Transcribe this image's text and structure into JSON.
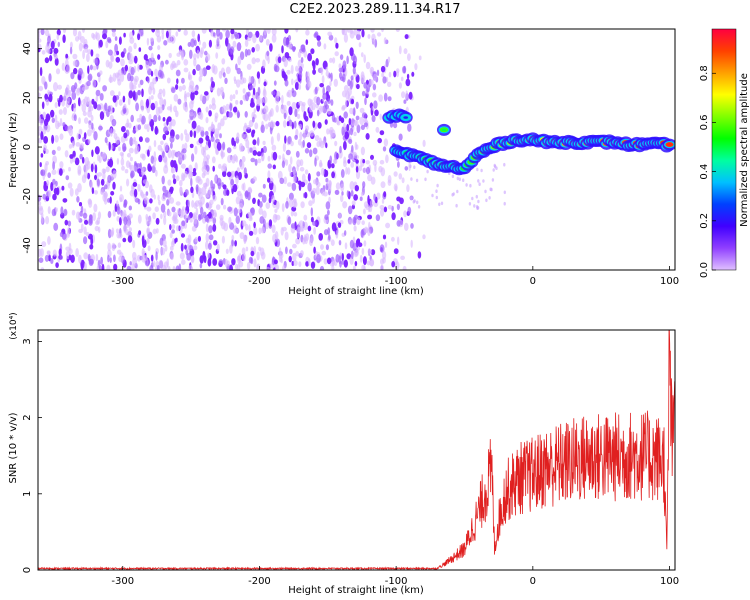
{
  "title": "C2E2.2023.289.11.34.R17",
  "chart_data": [
    {
      "type": "heatmap",
      "xlabel": "Height of straight line (km)",
      "ylabel": "Frequency (Hz)",
      "xlim": [
        -362,
        104
      ],
      "ylim": [
        -50,
        48
      ],
      "x_ticks": [
        -300,
        -200,
        -100,
        0,
        100
      ],
      "y_ticks": [
        -40,
        -20,
        0,
        20,
        40
      ],
      "x_tick_labels": [
        "-300",
        "-200",
        "-100",
        "0",
        "100"
      ],
      "y_tick_labels": [
        "-40",
        "-20",
        "0",
        "20",
        "40"
      ],
      "noise_region_x": [
        -362,
        -85
      ],
      "signal_track": [
        {
          "x": -105,
          "y": 12,
          "amp": 0.25
        },
        {
          "x": -100,
          "y": 13,
          "amp": 0.28
        },
        {
          "x": -93,
          "y": 12,
          "amp": 0.22
        },
        {
          "x": -100,
          "y": -2,
          "amp": 0.3
        },
        {
          "x": -90,
          "y": -3,
          "amp": 0.35
        },
        {
          "x": -80,
          "y": -5,
          "amp": 0.45
        },
        {
          "x": -70,
          "y": -7,
          "amp": 0.5
        },
        {
          "x": -60,
          "y": -8,
          "amp": 0.5
        },
        {
          "x": -50,
          "y": -9,
          "amp": 0.45
        },
        {
          "x": -45,
          "y": -6,
          "amp": 0.5
        },
        {
          "x": -40,
          "y": -3,
          "amp": 0.55
        },
        {
          "x": -30,
          "y": 0,
          "amp": 0.55
        },
        {
          "x": -20,
          "y": 2,
          "amp": 0.6
        },
        {
          "x": -10,
          "y": 3,
          "amp": 0.6
        },
        {
          "x": 0,
          "y": 3,
          "amp": 0.65
        },
        {
          "x": 10,
          "y": 2,
          "amp": 0.7
        },
        {
          "x": 20,
          "y": 2,
          "amp": 0.75
        },
        {
          "x": 30,
          "y": 2,
          "amp": 0.8
        },
        {
          "x": 40,
          "y": 2,
          "amp": 0.8
        },
        {
          "x": 50,
          "y": 2,
          "amp": 0.85
        },
        {
          "x": 60,
          "y": 2,
          "amp": 0.85
        },
        {
          "x": 70,
          "y": 1,
          "amp": 0.9
        },
        {
          "x": 80,
          "y": 1,
          "amp": 0.9
        },
        {
          "x": 90,
          "y": 1,
          "amp": 0.95
        },
        {
          "x": 100,
          "y": 1,
          "amp": 0.95
        }
      ],
      "side_blob": {
        "x": -65,
        "y": 7,
        "amp": 0.5
      }
    },
    {
      "type": "colorbar",
      "label": "Normalized spectral amplitude",
      "range": [
        0,
        0.98
      ],
      "ticks": [
        0,
        0.2,
        0.4,
        0.6,
        0.8
      ],
      "tick_labels": [
        "0.0",
        "0.2",
        "0.4",
        "0.6",
        "0.8"
      ],
      "colormap": [
        "#e0c0ff",
        "#9040ff",
        "#4000ff",
        "#0040ff",
        "#00c0ff",
        "#00ffa0",
        "#00ff00",
        "#80ff00",
        "#ffff00",
        "#ffa000",
        "#ff4000",
        "#ff0040"
      ]
    },
    {
      "type": "line",
      "xlabel": "Height of straight line (km)",
      "ylabel": "SNR (10 * v/v)",
      "y_multiplier": "(x10⁴)",
      "xlim": [
        -362,
        104
      ],
      "ylim": [
        0,
        3.15
      ],
      "x_ticks": [
        -300,
        -200,
        -100,
        0,
        100
      ],
      "y_ticks": [
        0,
        1,
        2,
        3
      ],
      "x_tick_labels": [
        "-300",
        "-200",
        "-100",
        "0",
        "100"
      ],
      "y_tick_labels": [
        "0",
        "1",
        "2",
        "3"
      ],
      "line_color": "#e02020",
      "envelope": [
        {
          "x": -362,
          "y": 0.01
        },
        {
          "x": -70,
          "y": 0.01
        },
        {
          "x": -60,
          "y": 0.15
        },
        {
          "x": -50,
          "y": 0.3
        },
        {
          "x": -40,
          "y": 0.8
        },
        {
          "x": -30,
          "y": 1.4
        },
        {
          "x": -28,
          "y": 0.3
        },
        {
          "x": -25,
          "y": 0.7
        },
        {
          "x": -20,
          "y": 1.1
        },
        {
          "x": -10,
          "y": 1.3
        },
        {
          "x": 0,
          "y": 1.35
        },
        {
          "x": 10,
          "y": 1.45
        },
        {
          "x": 20,
          "y": 1.5
        },
        {
          "x": 30,
          "y": 1.55
        },
        {
          "x": 40,
          "y": 1.6
        },
        {
          "x": 50,
          "y": 1.6
        },
        {
          "x": 60,
          "y": 1.6
        },
        {
          "x": 70,
          "y": 1.62
        },
        {
          "x": 80,
          "y": 1.62
        },
        {
          "x": 90,
          "y": 1.6
        },
        {
          "x": 96,
          "y": 1.55
        },
        {
          "x": 98,
          "y": 0.2
        },
        {
          "x": 100,
          "y": 3.1
        },
        {
          "x": 102,
          "y": 1.6
        },
        {
          "x": 104,
          "y": 2.5
        }
      ]
    }
  ]
}
